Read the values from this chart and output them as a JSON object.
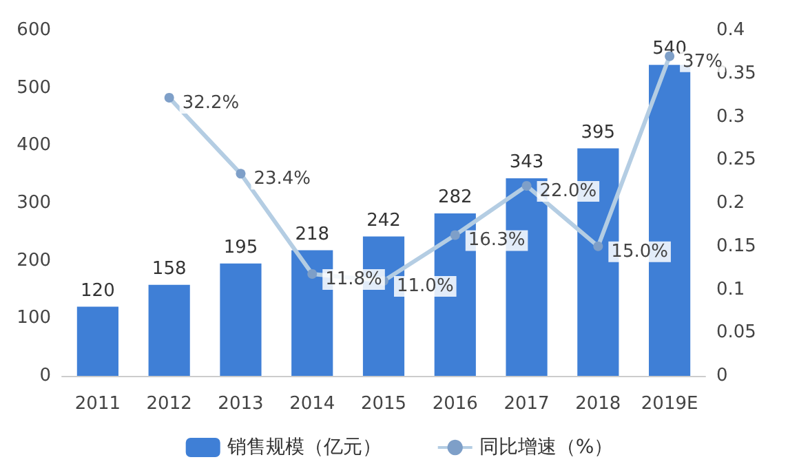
{
  "chart_data": {
    "type": "bar",
    "categories": [
      "2011",
      "2012",
      "2013",
      "2014",
      "2015",
      "2016",
      "2017",
      "2018",
      "2019E"
    ],
    "series": [
      {
        "name": "销售规模（亿元）",
        "color": "#3f7fd6",
        "values": [
          120,
          158,
          195,
          218,
          242,
          282,
          343,
          395,
          540
        ],
        "value_labels": [
          "120",
          "158",
          "195",
          "218",
          "242",
          "282",
          "343",
          "395",
          "540"
        ]
      },
      {
        "name": "同比增速（%）",
        "type": "line",
        "axis": "y2",
        "color": "#b4cde3",
        "marker": "circle",
        "values": [
          null,
          0.322,
          0.234,
          0.118,
          0.11,
          0.163,
          0.22,
          0.15,
          0.37
        ],
        "value_labels": [
          null,
          "32.2%",
          "23.4%",
          "11.8%",
          "11.0%",
          "16.3%",
          "22.0%",
          "15.0%",
          "37%"
        ]
      }
    ],
    "ylim": [
      0,
      600
    ],
    "yticks": [
      0,
      100,
      200,
      300,
      400,
      500,
      600
    ],
    "y2lim": [
      0,
      0.4
    ],
    "y2ticks": [
      0,
      0.05,
      0.1,
      0.15,
      0.2,
      0.25,
      0.3,
      0.35,
      0.4
    ],
    "grid": false,
    "legend": "bottom"
  }
}
